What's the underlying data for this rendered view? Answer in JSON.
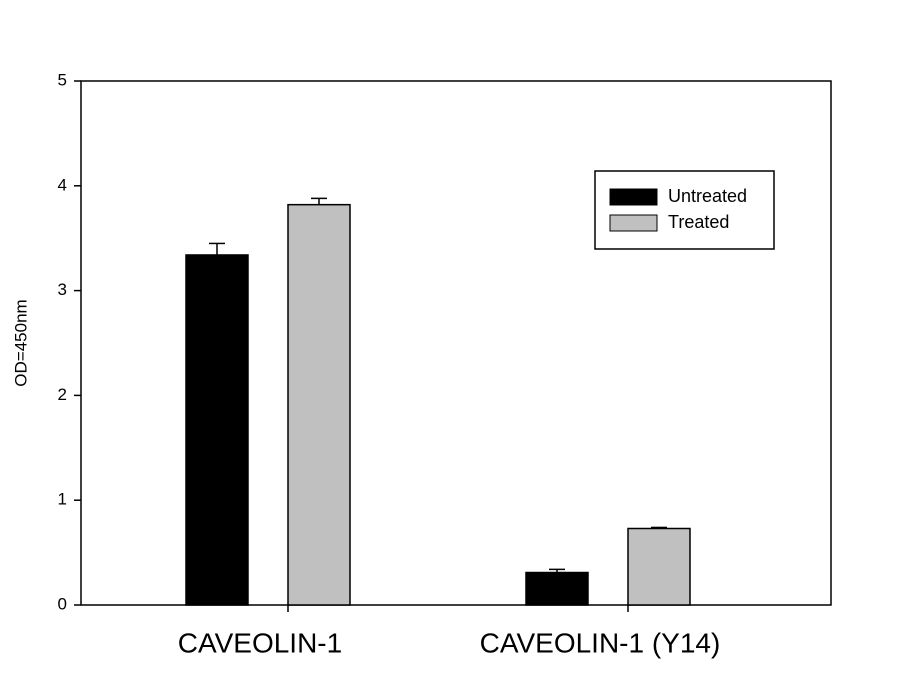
{
  "chart_data": {
    "type": "bar",
    "y_label": "OD=450nm",
    "categories": [
      "CAVEOLIN-1",
      "CAVEOLIN-1 (Y14)"
    ],
    "series": [
      {
        "name": "Untreated",
        "color": "#000000",
        "values": [
          3.34,
          0.31
        ],
        "errors": [
          0.11,
          0.03
        ]
      },
      {
        "name": "Treated",
        "color": "#c0c0c0",
        "values": [
          3.82,
          0.73
        ],
        "errors": [
          0.06,
          0.01
        ]
      }
    ],
    "ylim": [
      0,
      5
    ],
    "yticks": [
      0,
      1,
      2,
      3,
      4,
      5
    ]
  }
}
